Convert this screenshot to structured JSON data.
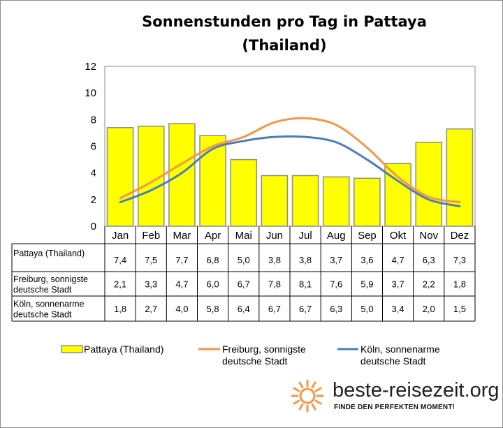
{
  "chart_data": {
    "type": "bar",
    "title": [
      "Sonnenstunden pro Tag in Pattaya",
      "(Thailand)"
    ],
    "categories": [
      "Jan",
      "Feb",
      "Mar",
      "Apr",
      "Mai",
      "Jun",
      "Jul",
      "Aug",
      "Sep",
      "Okt",
      "Nov",
      "Dez"
    ],
    "ylim": [
      0,
      12
    ],
    "yticks": [
      "0",
      "2",
      "4",
      "6",
      "8",
      "10",
      "12"
    ],
    "grid": false,
    "legend_position": "bottom",
    "series": [
      {
        "name": "Pattaya (Thailand)",
        "name_lines": [
          "Pattaya (Thailand)"
        ],
        "type": "bar",
        "color": "#ffff00",
        "values": [
          7.4,
          7.5,
          7.7,
          6.8,
          5.0,
          3.8,
          3.8,
          3.7,
          3.6,
          4.7,
          6.3,
          7.3
        ],
        "labels": [
          "7,4",
          "7,5",
          "7,7",
          "6,8",
          "5,0",
          "3,8",
          "3,8",
          "3,7",
          "3,6",
          "4,7",
          "6,3",
          "7,3"
        ]
      },
      {
        "name": "Freiburg, sonnigste deutsche Stadt",
        "name_lines": [
          "Freiburg, sonnigste",
          "deutsche Stadt"
        ],
        "type": "line",
        "color": "#f79646",
        "values": [
          2.1,
          3.3,
          4.7,
          6.0,
          6.7,
          7.8,
          8.1,
          7.6,
          5.9,
          3.7,
          2.2,
          1.8
        ],
        "labels": [
          "2,1",
          "3,3",
          "4,7",
          "6,0",
          "6,7",
          "7,8",
          "8,1",
          "7,6",
          "5,9",
          "3,7",
          "2,2",
          "1,8"
        ]
      },
      {
        "name": "Köln, sonnenarme deutsche Stadt",
        "name_lines": [
          "Köln, sonnenarme",
          "deutsche Stadt"
        ],
        "type": "line",
        "color": "#4a7ebb",
        "values": [
          1.8,
          2.7,
          4.0,
          5.8,
          6.4,
          6.7,
          6.7,
          6.3,
          5.0,
          3.4,
          2.0,
          1.5
        ],
        "labels": [
          "1,8",
          "2,7",
          "4,0",
          "5,8",
          "6,4",
          "6,7",
          "6,7",
          "6,3",
          "5,0",
          "3,4",
          "2,0",
          "1,5"
        ]
      }
    ]
  },
  "legend": {
    "items": [
      {
        "lines": [
          "Pattaya (Thailand)"
        ]
      },
      {
        "lines": [
          "Freiburg, sonnigste",
          "deutsche Stadt"
        ]
      },
      {
        "lines": [
          "Köln, sonnenarme",
          "deutsche Stadt"
        ]
      }
    ]
  },
  "logo": {
    "text": "beste-reisezeit.org",
    "tagline": "FINDE DEN PERFEKTEN MOMENT!",
    "sun_color": "#f79646"
  }
}
